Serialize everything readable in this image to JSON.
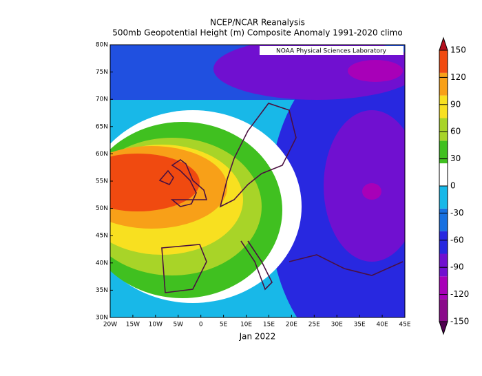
{
  "title": "NCEP/NCAR Reanalysis",
  "subtitle": "500mb Geopotential Height (m) Composite Anomaly 1991-2020 climo",
  "credit": "NOAA Physical Sciences Laboratory",
  "date_label": "Jan 2022",
  "map": {
    "xlim": [
      -20,
      45
    ],
    "ylim": [
      30,
      80
    ],
    "xticks": [
      {
        "value": -20,
        "label": "20W"
      },
      {
        "value": -15,
        "label": "15W"
      },
      {
        "value": -10,
        "label": "10W"
      },
      {
        "value": -5,
        "label": "5W"
      },
      0,
      {
        "value": 5,
        "label": "5E"
      },
      {
        "value": 10,
        "label": "10E"
      },
      {
        "value": 15,
        "label": "15E"
      },
      {
        "value": 20,
        "label": "20E"
      },
      {
        "value": 25,
        "label": "25E"
      },
      {
        "value": 30,
        "label": "30E"
      },
      {
        "value": 35,
        "label": "35E"
      },
      {
        "value": 40,
        "label": "40E"
      },
      {
        "value": 45,
        "label": "45E"
      }
    ],
    "yticks": [
      {
        "value": 30,
        "label": "30N"
      },
      {
        "value": 35,
        "label": "35N"
      },
      {
        "value": 40,
        "label": "40N"
      },
      {
        "value": 45,
        "label": "45N"
      },
      {
        "value": 50,
        "label": "50N"
      },
      {
        "value": 55,
        "label": "55N"
      },
      {
        "value": 60,
        "label": "60N"
      },
      {
        "value": 65,
        "label": "65N"
      },
      {
        "value": 70,
        "label": "70N"
      },
      {
        "value": 75,
        "label": "75N"
      },
      {
        "value": 80,
        "label": "80N"
      }
    ]
  },
  "colorbar": {
    "lim": [
      -150,
      150
    ],
    "ticks": [
      -150,
      -120,
      -90,
      -60,
      -30,
      0,
      30,
      60,
      90,
      120,
      150
    ],
    "colors": [
      "#8a0a8a",
      "#a800b8",
      "#7010d0",
      "#2828e0",
      "#1870e0",
      "#18b8e8",
      "#ffffff",
      "#40c020",
      "#a8d428",
      "#f8e020",
      "#f8a018",
      "#f04a10"
    ],
    "under_color": "#500050",
    "over_color": "#b40f1e"
  }
}
